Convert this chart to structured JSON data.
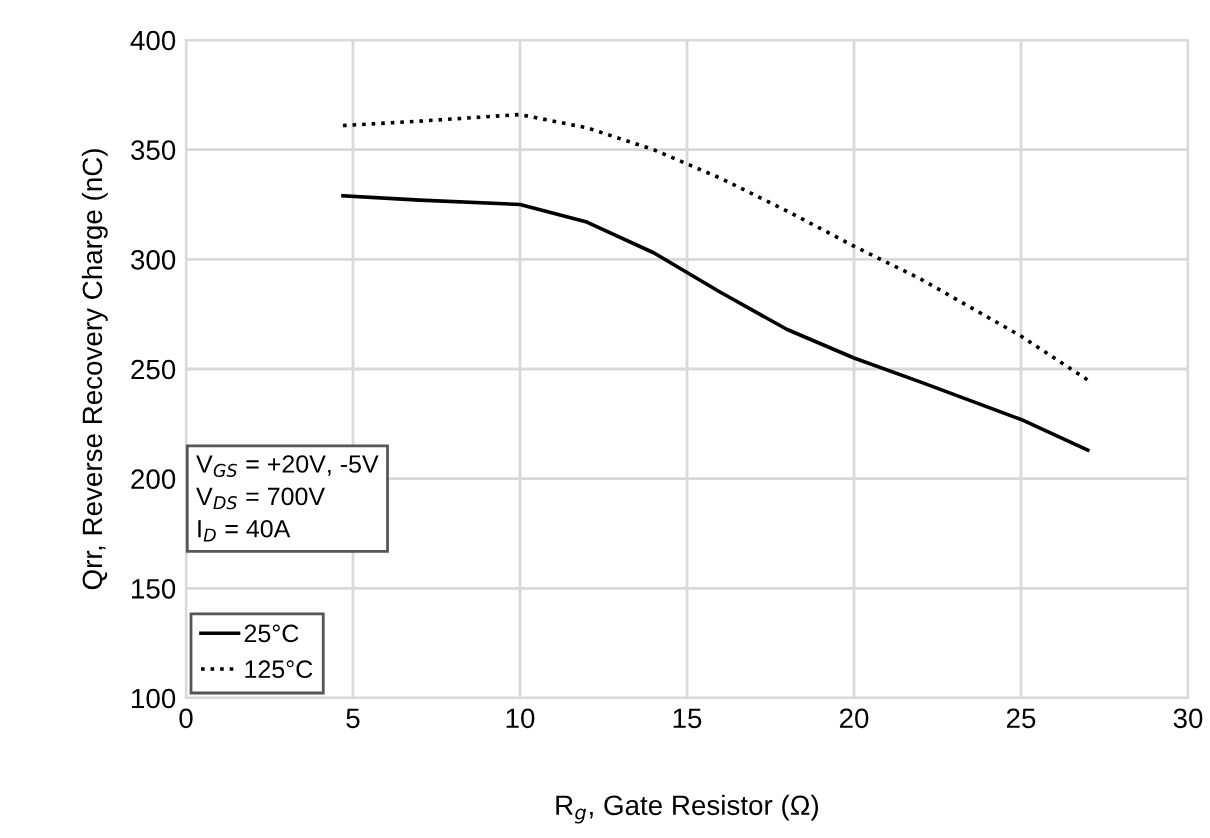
{
  "chart_data": {
    "type": "line",
    "xlabel": "R$_{g}$, Gate Resistor (Ω)",
    "ylabel": "Qrr, Reverse Recovery Charge (nC)",
    "xlim": [
      0,
      30
    ],
    "xticks": [
      0,
      5,
      10,
      15,
      20,
      25,
      30
    ],
    "ylim": [
      100,
      400
    ],
    "yticks": [
      100,
      150,
      200,
      250,
      300,
      350,
      400
    ],
    "grid": true,
    "legend": "bottom left",
    "annotations": [
      "V$_{GS}$ = +20V, -5V\nV$_{DS}$ = 700V\nI$_{D}$ = 40A"
    ],
    "series": [
      {
        "name": "25°C",
        "color": "#000000",
        "line_style": "solid",
        "x": [
          4.7,
          7,
          10,
          12,
          14,
          16,
          18,
          20,
          22,
          25,
          27
        ],
        "values": [
          329,
          327,
          325,
          317,
          303,
          285,
          268,
          255,
          244,
          227,
          213
        ]
      },
      {
        "name": "125°C",
        "color": "#000000",
        "line_style": "dotted",
        "x": [
          4.7,
          7,
          10,
          12,
          14,
          16,
          18,
          20,
          22,
          25,
          27
        ],
        "values": [
          361,
          363,
          366,
          360,
          350,
          337,
          322,
          306,
          291,
          265,
          245
        ]
      }
    ]
  }
}
